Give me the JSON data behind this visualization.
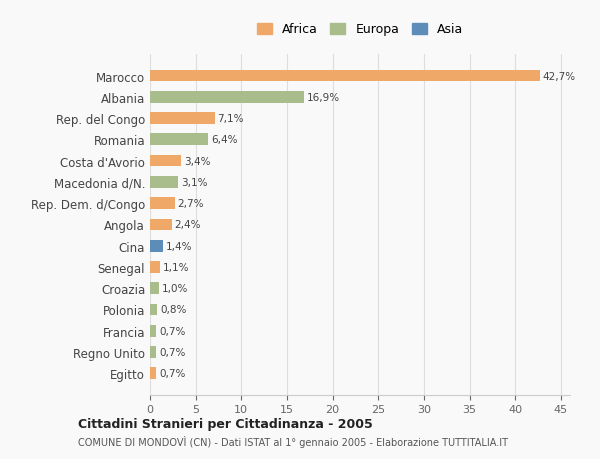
{
  "categories": [
    "Marocco",
    "Albania",
    "Rep. del Congo",
    "Romania",
    "Costa d'Avorio",
    "Macedonia d/N.",
    "Rep. Dem. d/Congo",
    "Angola",
    "Cina",
    "Senegal",
    "Croazia",
    "Polonia",
    "Francia",
    "Regno Unito",
    "Egitto"
  ],
  "values": [
    42.7,
    16.9,
    7.1,
    6.4,
    3.4,
    3.1,
    2.7,
    2.4,
    1.4,
    1.1,
    1.0,
    0.8,
    0.7,
    0.7,
    0.7
  ],
  "labels": [
    "42,7%",
    "16,9%",
    "7,1%",
    "6,4%",
    "3,4%",
    "3,1%",
    "2,7%",
    "2,4%",
    "1,4%",
    "1,1%",
    "1,0%",
    "0,8%",
    "0,7%",
    "0,7%",
    "0,7%"
  ],
  "continents": [
    "Africa",
    "Europa",
    "Africa",
    "Europa",
    "Africa",
    "Europa",
    "Africa",
    "Africa",
    "Asia",
    "Africa",
    "Europa",
    "Europa",
    "Europa",
    "Europa",
    "Africa"
  ],
  "colors": {
    "Africa": "#F0A868",
    "Europa": "#A8BC8C",
    "Asia": "#5B8DB8"
  },
  "legend_colors": {
    "Africa": "#F0A868",
    "Europa": "#A8BC8C",
    "Asia": "#5B8DB8"
  },
  "xlim": [
    0,
    46
  ],
  "xticks": [
    0,
    5,
    10,
    15,
    20,
    25,
    30,
    35,
    40,
    45
  ],
  "title": "Cittadini Stranieri per Cittadinanza - 2005",
  "subtitle": "COMUNE DI MONDOVÌ (CN) - Dati ISTAT al 1° gennaio 2005 - Elaborazione TUTTITALIA.IT",
  "background_color": "#f9f9f9",
  "bar_height": 0.55,
  "grid_color": "#dddddd"
}
